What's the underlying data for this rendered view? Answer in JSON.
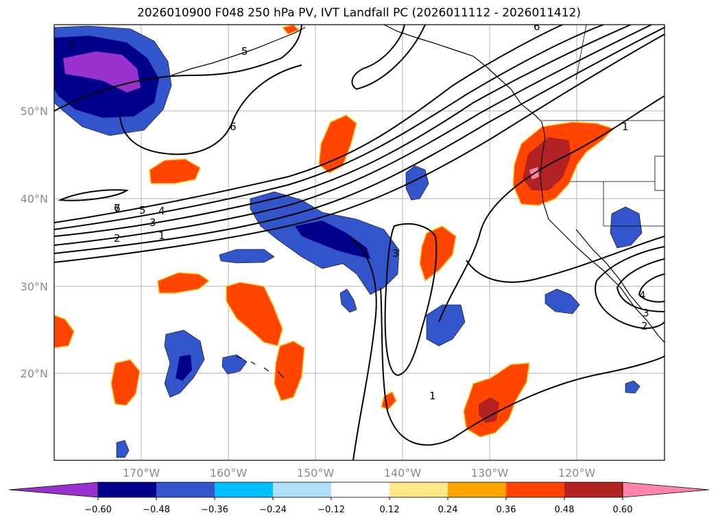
{
  "title": "2026010900 F048 250 hPa PV, IVT Landfall PC (2026011112 - 2026011412)",
  "map": {
    "lon_labels": [
      "170°W",
      "160°W",
      "150°W",
      "140°W",
      "130°W",
      "120°W"
    ],
    "lat_labels": [
      "50°N",
      "40°N",
      "30°N",
      "20°N"
    ]
  },
  "contour_labels": [
    "7",
    "6",
    "5",
    "4",
    "3",
    "2",
    "1",
    "7",
    "6",
    "5",
    "3",
    "1",
    "1",
    "4",
    "3",
    "2",
    "6"
  ],
  "colorbar": {
    "ticks": [
      "−0.60",
      "−0.48",
      "−0.36",
      "−0.24",
      "−0.12",
      "0.12",
      "0.24",
      "0.36",
      "0.48",
      "0.60"
    ],
    "colors": [
      "#9932cc",
      "#00008b",
      "#3355cc",
      "#00bfff",
      "#aee0f8",
      "#ffffff",
      "#ffe88a",
      "#ffa500",
      "#ff4500",
      "#b22222",
      "#ff85a8"
    ]
  }
}
